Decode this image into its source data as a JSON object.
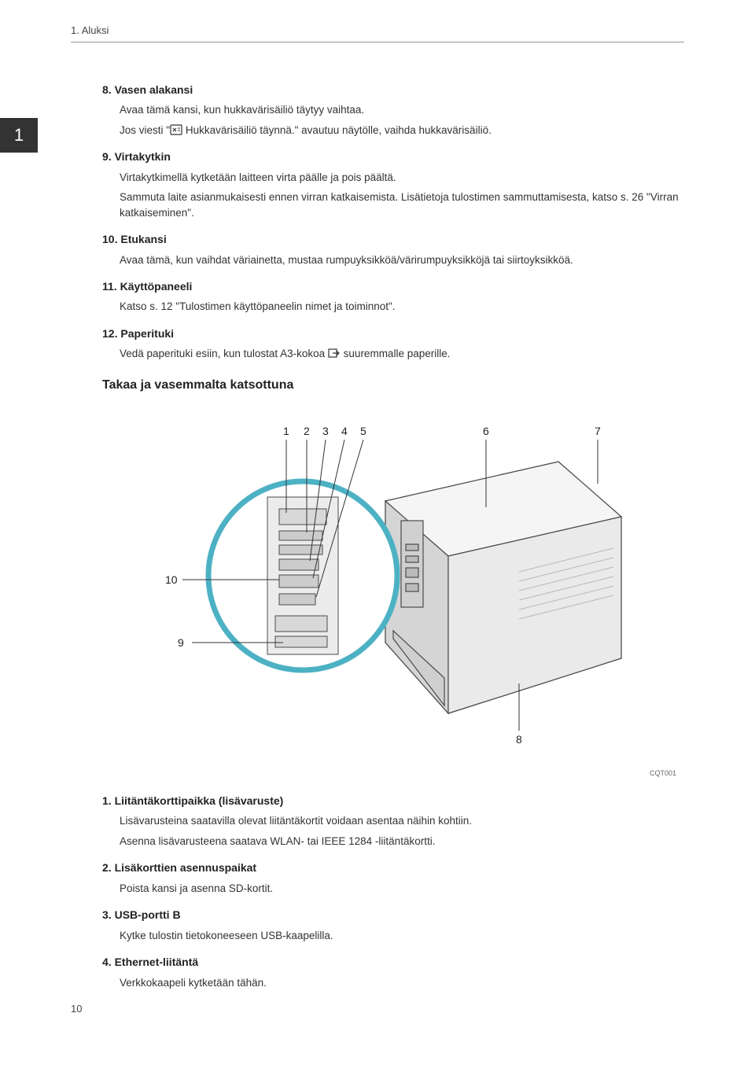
{
  "header": {
    "breadcrumb": "1. Aluksi"
  },
  "chapter_marker": "1",
  "items_top": [
    {
      "num": "8.",
      "title": "Vasen alakansi",
      "paragraphs": [
        "Avaa tämä kansi, kun hukkavärisäiliö täytyy vaihtaa.",
        "Jos viesti \"{{icon:doc}} Hukkavärisäiliö täynnä.\" avautuu näytölle, vaihda hukkavärisäiliö."
      ]
    },
    {
      "num": "9.",
      "title": "Virtakytkin",
      "paragraphs": [
        "Virtakytkimellä kytketään laitteen virta päälle ja pois päältä.",
        "Sammuta laite asianmukaisesti ennen virran katkaisemista. Lisätietoja tulostimen sammuttamisesta, katso s. 26 \"Virran katkaiseminen\"."
      ]
    },
    {
      "num": "10.",
      "title": "Etukansi",
      "paragraphs": [
        "Avaa tämä, kun vaihdat väriainetta, mustaa rumpuyksikköä/värirumpuyksikköjä tai siirtoyksikköä."
      ]
    },
    {
      "num": "11.",
      "title": "Käyttöpaneeli",
      "paragraphs": [
        "Katso s. 12 \"Tulostimen käyttöpaneelin nimet ja toiminnot\"."
      ]
    },
    {
      "num": "12.",
      "title": "Paperituki",
      "paragraphs": [
        "Vedä paperituki esiin, kun tulostat A3-kokoa {{icon:arrow}} suuremmalle paperille."
      ]
    }
  ],
  "subheading": "Takaa ja vasemmalta katsottuna",
  "diagram": {
    "callout_labels": [
      "1",
      "2",
      "3",
      "4",
      "5",
      "6",
      "7",
      "8",
      "9",
      "10"
    ],
    "image_code": "CQT001",
    "colors": {
      "outline": "#4a4a4a",
      "fill_light": "#f3f3f3",
      "fill_med": "#d8d8d8",
      "fill_dark": "#bababa",
      "leader": "#333333",
      "teal": "#4db1c4"
    }
  },
  "items_bottom": [
    {
      "num": "1.",
      "title": "Liitäntäkorttipaikka (lisävaruste)",
      "paragraphs": [
        "Lisävarusteina saatavilla olevat liitäntäkortit voidaan asentaa näihin kohtiin.",
        "Asenna lisävarusteena saatava WLAN- tai IEEE 1284 -liitäntäkortti."
      ]
    },
    {
      "num": "2.",
      "title": "Lisäkorttien asennuspaikat",
      "paragraphs": [
        "Poista kansi ja asenna SD-kortit."
      ]
    },
    {
      "num": "3.",
      "title": "USB-portti B",
      "paragraphs": [
        "Kytke tulostin tietokoneeseen USB-kaapelilla."
      ]
    },
    {
      "num": "4.",
      "title": "Ethernet-liitäntä",
      "paragraphs": [
        "Verkkokaapeli kytketään tähän."
      ]
    }
  ],
  "page_number": "10"
}
